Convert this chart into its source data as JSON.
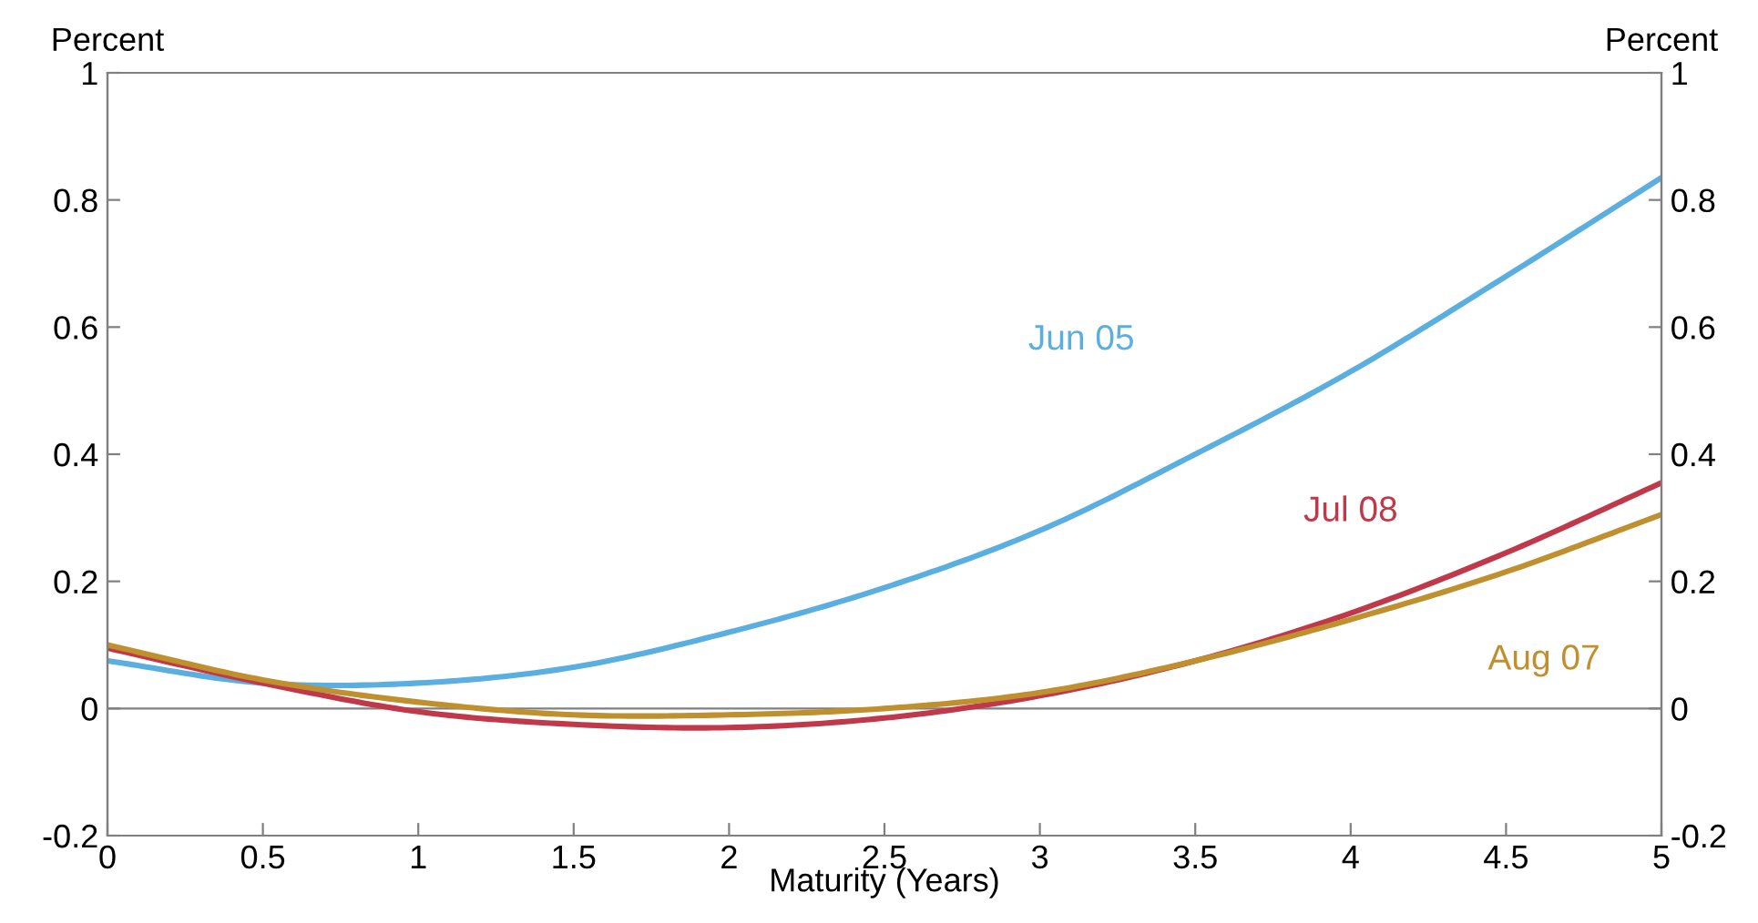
{
  "chart_data": {
    "type": "line",
    "xlabel": "Maturity (Years)",
    "ylabel": "Percent",
    "y2label": "Percent",
    "x": [
      0,
      0.5,
      1,
      1.5,
      2,
      2.5,
      3,
      3.5,
      4,
      4.5,
      5
    ],
    "series": [
      {
        "name": "Jun 05",
        "color": "#5aafe0",
        "values": [
          0.075,
          0.04,
          0.04,
          0.065,
          0.12,
          0.19,
          0.28,
          0.4,
          0.53,
          0.68,
          0.835
        ]
      },
      {
        "name": "Jul 08",
        "color": "#c0394a",
        "values": [
          0.095,
          0.04,
          -0.005,
          -0.025,
          -0.03,
          -0.015,
          0.02,
          0.075,
          0.15,
          0.245,
          0.355
        ]
      },
      {
        "name": "Aug 07",
        "color": "#c08f2e",
        "values": [
          0.1,
          0.045,
          0.01,
          -0.01,
          -0.01,
          0.0,
          0.025,
          0.075,
          0.14,
          0.215,
          0.305
        ]
      }
    ],
    "ref_lines": [
      {
        "axis": "y",
        "value": 0,
        "color": "#808080"
      }
    ],
    "xlim": [
      0,
      5
    ],
    "xticks": [
      0,
      0.5,
      1,
      1.5,
      2,
      2.5,
      3,
      3.5,
      4,
      4.5,
      5
    ],
    "ylim": [
      -0.2,
      1
    ],
    "yticks": [
      -0.2,
      0,
      0.2,
      0.4,
      0.6,
      0.8,
      1
    ],
    "y2lim": [
      -0.2,
      1
    ],
    "y2ticks": [
      -0.2,
      0,
      0.2,
      0.4,
      0.6,
      0.8,
      1
    ],
    "grid": false,
    "legend": false,
    "marker": "none",
    "line_style": "solid"
  }
}
